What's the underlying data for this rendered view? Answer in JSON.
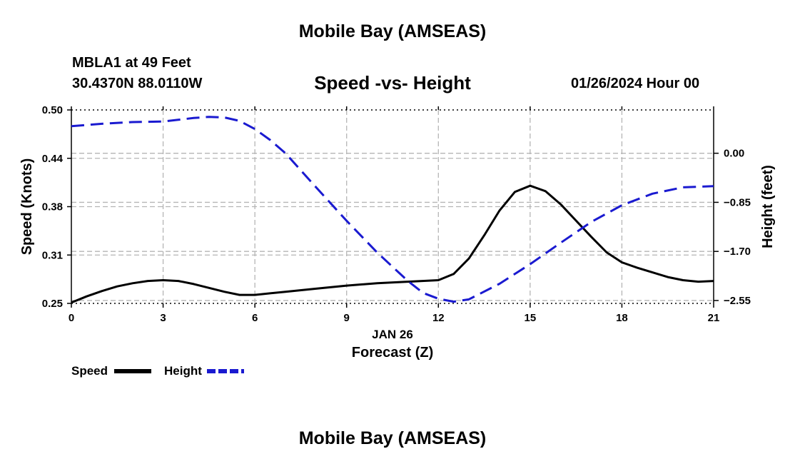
{
  "header": {
    "title_top": "Mobile Bay (AMSEAS)",
    "title_bottom": "Mobile Bay (AMSEAS)",
    "station": "MBLA1 at 49 Feet",
    "coords": "30.4370N  88.0110W",
    "subtitle": "Speed -vs- Height",
    "date": "01/26/2024 Hour 00"
  },
  "chart_data": {
    "type": "line",
    "title": "Speed -vs- Height",
    "xlabel": "Forecast (Z)",
    "xlabel_date": "JAN 26",
    "ylabel_left": "Speed (Knots)",
    "ylabel_right": "Height (feet)",
    "xlim": [
      0,
      21
    ],
    "ylim_left": [
      0.25,
      0.5
    ],
    "ylim_right": [
      -2.6,
      0.75
    ],
    "x_ticks": [
      0,
      3,
      6,
      9,
      12,
      15,
      18,
      21
    ],
    "x_tick_labels": [
      "0",
      "3",
      "6",
      "9",
      "12",
      "15",
      "18",
      "21"
    ],
    "y_left_ticks": [
      0.25,
      0.3125,
      0.375,
      0.4375,
      0.5
    ],
    "y_left_tick_labels": [
      "0.25",
      "0.31",
      "0.38",
      "0.44",
      "0.50"
    ],
    "y_right_ticks": [
      0.0,
      -0.85,
      -1.7,
      -2.55
    ],
    "y_right_tick_labels": [
      "0.00",
      "−0.85",
      "−1.70",
      "−2.55"
    ],
    "grid": true,
    "series": [
      {
        "name": "Speed",
        "axis": "left",
        "color": "#000000",
        "style": "solid",
        "x": [
          0,
          0.5,
          1,
          1.5,
          2,
          2.5,
          3,
          3.5,
          4,
          4.5,
          5,
          5.5,
          6,
          7,
          8,
          9,
          10,
          11,
          12,
          12.5,
          13,
          13.5,
          14,
          14.5,
          15,
          15.5,
          16,
          16.5,
          17,
          17.5,
          18,
          18.5,
          19,
          19.5,
          20,
          20.5,
          21
        ],
        "values": [
          0.251,
          0.259,
          0.266,
          0.272,
          0.276,
          0.279,
          0.28,
          0.279,
          0.275,
          0.27,
          0.265,
          0.261,
          0.261,
          0.265,
          0.269,
          0.273,
          0.276,
          0.278,
          0.28,
          0.288,
          0.308,
          0.338,
          0.37,
          0.394,
          0.402,
          0.395,
          0.378,
          0.357,
          0.336,
          0.316,
          0.303,
          0.296,
          0.29,
          0.284,
          0.28,
          0.278,
          0.279
        ]
      },
      {
        "name": "Height",
        "axis": "right",
        "color": "#1a1ad0",
        "style": "dashed",
        "x": [
          0,
          1,
          2,
          3,
          3.5,
          4,
          4.5,
          5,
          5.5,
          6,
          6.5,
          7,
          8,
          9,
          10,
          11,
          11.5,
          12,
          12.5,
          13,
          14,
          15,
          16,
          17,
          18,
          19,
          20,
          21
        ],
        "values": [
          0.47,
          0.51,
          0.54,
          0.55,
          0.58,
          0.61,
          0.63,
          0.62,
          0.56,
          0.42,
          0.23,
          0.0,
          -0.59,
          -1.17,
          -1.72,
          -2.21,
          -2.42,
          -2.52,
          -2.57,
          -2.53,
          -2.26,
          -1.92,
          -1.55,
          -1.19,
          -0.9,
          -0.7,
          -0.59,
          -0.57
        ]
      }
    ],
    "legend": [
      "Speed",
      "Height"
    ]
  }
}
